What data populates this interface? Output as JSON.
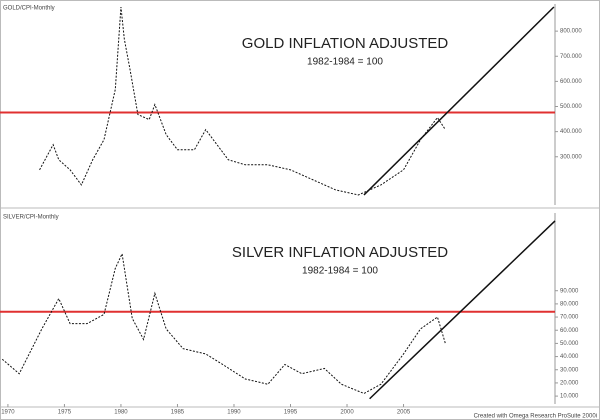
{
  "chart_data": [
    {
      "type": "line",
      "header": "GOLD/CPI-Monthly",
      "title": "GOLD INFLATION ADJUSTED",
      "subtitle": "1982-1984 = 100",
      "color": "#111111",
      "x": [
        1972.8,
        1974.0,
        1974.5,
        1975.5,
        1976.5,
        1977.5,
        1978.5,
        1979.5,
        1980.0,
        1980.3,
        1980.8,
        1981.5,
        1982.5,
        1983.0,
        1984.0,
        1985.0,
        1986.5,
        1987.5,
        1988.5,
        1989.5,
        1991.0,
        1993.0,
        1995.0,
        1997.0,
        1999.0,
        2001.0,
        2003.0,
        2005.0,
        2006.5,
        2008.0,
        2008.7
      ],
      "values": [
        248,
        348,
        288,
        248,
        188,
        288,
        368,
        568,
        896,
        768,
        648,
        468,
        448,
        508,
        388,
        328,
        328,
        408,
        348,
        288,
        268,
        268,
        248,
        208,
        168,
        148,
        188,
        248,
        368,
        456,
        408
      ],
      "reference_line": {
        "value": 476,
        "color": "#e03030"
      },
      "trendline": {
        "x": [
          2001.5,
          2018.3
        ],
        "values": [
          148,
          896
        ],
        "color": "#111111"
      },
      "xlim": [
        1969.3,
        2018.4
      ],
      "ylim": [
        108,
        908
      ],
      "yticks": [
        {
          "value": 800,
          "label": "800.000"
        },
        {
          "value": 700,
          "label": "700.000"
        },
        {
          "value": 600,
          "label": "600.000"
        },
        {
          "value": 500,
          "label": "500.000"
        },
        {
          "value": 400,
          "label": "400.000"
        },
        {
          "value": 300,
          "label": "300.000"
        }
      ]
    },
    {
      "type": "line",
      "header": "SILVER/CPI-Monthly",
      "title": "SILVER INFLATION ADJUSTED",
      "subtitle": "1982-1984 = 100",
      "color": "#111111",
      "x": [
        1969.5,
        1971.0,
        1973.0,
        1974.5,
        1975.5,
        1977.0,
        1978.5,
        1979.5,
        1980.1,
        1981.0,
        1982.0,
        1983.0,
        1984.0,
        1985.5,
        1987.5,
        1989.0,
        1991.0,
        1993.0,
        1994.5,
        1996.0,
        1998.0,
        1999.5,
        2001.5,
        2003.0,
        2005.0,
        2006.5,
        2008.0,
        2008.7
      ],
      "values": [
        38,
        27,
        61,
        84,
        65,
        65,
        72,
        107,
        118,
        69,
        53,
        88,
        61,
        46,
        42,
        34,
        23,
        19,
        34,
        27,
        31,
        19,
        12,
        19,
        42,
        61,
        70,
        50
      ],
      "reference_line": {
        "value": 74,
        "color": "#e03030"
      },
      "trendline": {
        "x": [
          2002.0,
          2018.4
        ],
        "values": [
          8,
          143
        ],
        "color": "#111111"
      },
      "xlim": [
        1969.3,
        2018.4
      ],
      "ylim": [
        4,
        149
      ],
      "yticks": [
        {
          "value": 90,
          "label": "90.000"
        },
        {
          "value": 80,
          "label": "80.000"
        },
        {
          "value": 70,
          "label": "70.000"
        },
        {
          "value": 60,
          "label": "60.000"
        },
        {
          "value": 50,
          "label": "50.000"
        },
        {
          "value": 40,
          "label": "40.000"
        },
        {
          "value": 30,
          "label": "30.000"
        },
        {
          "value": 20,
          "label": "20.000"
        },
        {
          "value": 10,
          "label": "10.000"
        }
      ],
      "xticks": [
        1970,
        1975,
        1980,
        1985,
        1990,
        1995,
        2000,
        2005
      ],
      "footer": "Created with Omega Research ProSuite 2000i"
    }
  ]
}
